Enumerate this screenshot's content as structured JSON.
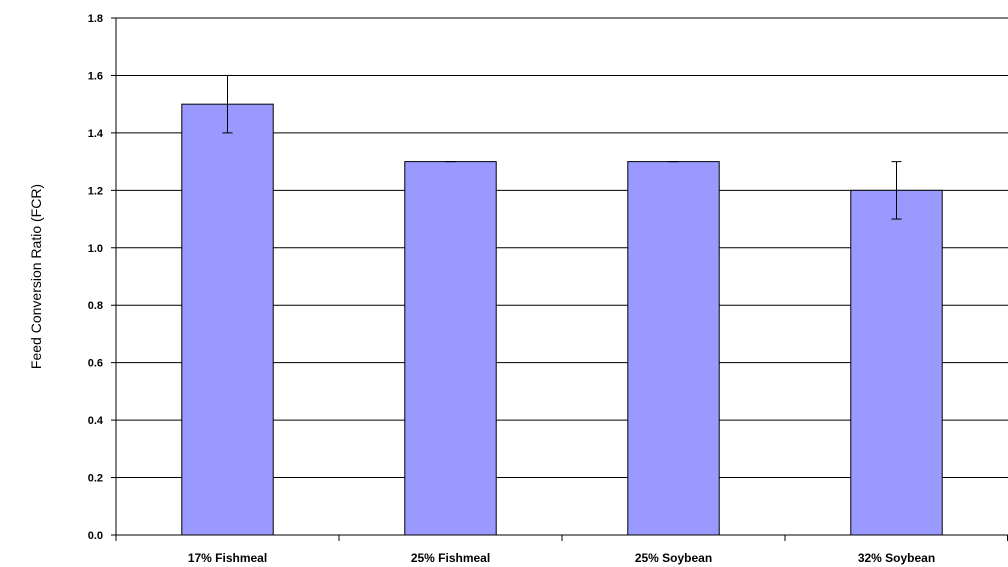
{
  "chart_data": {
    "type": "bar",
    "title": "",
    "xlabel": "",
    "ylabel": "Feed Conversion Ratio (FCR)",
    "categories": [
      "17% Fishmeal",
      "25% Fishmeal",
      "25% Soybean",
      "32% Soybean"
    ],
    "values": [
      1.5,
      1.3,
      1.3,
      1.2
    ],
    "error": [
      0.1,
      0.0,
      0.0,
      0.1
    ],
    "ylim": [
      0,
      1.8
    ],
    "yticks": [
      "0.0",
      "0.2",
      "0.4",
      "0.6",
      "0.8",
      "1.0",
      "1.2",
      "1.4",
      "1.6",
      "1.8"
    ],
    "grid": true,
    "legend": "none",
    "bar_color": "#9999ff"
  }
}
